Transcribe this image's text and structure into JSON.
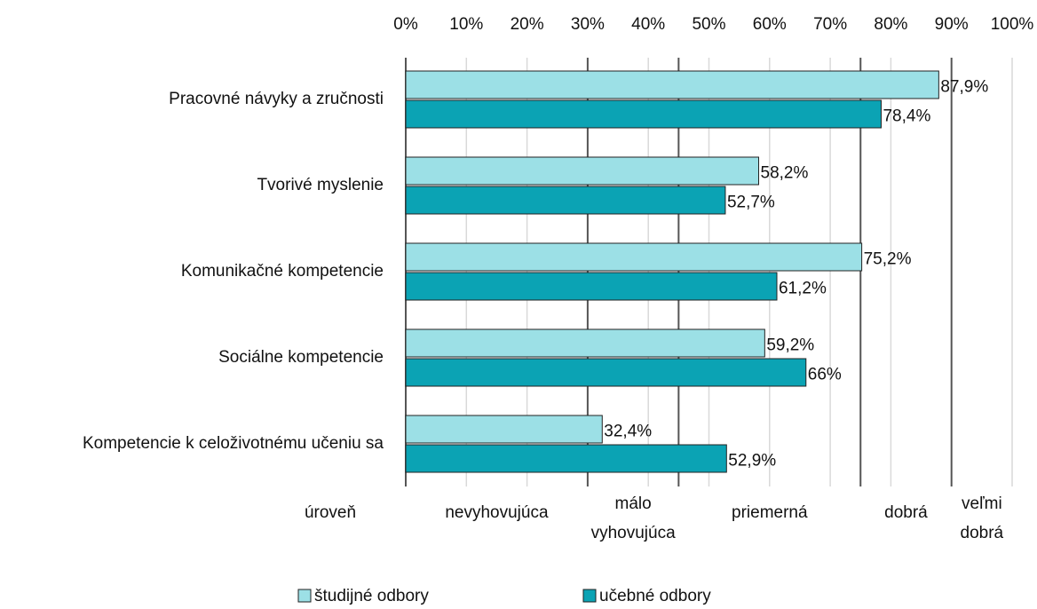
{
  "chart_data": {
    "type": "bar",
    "orientation": "horizontal",
    "categories": [
      "Pracovné návyky a zručnosti",
      "Tvorivé myslenie",
      "Komunikačné kompetencie",
      "Sociálne kompetencie",
      "Kompetencie k celoživotnému učeniu sa"
    ],
    "series": [
      {
        "name": "študijné odbory",
        "color": "#9ce0e6",
        "values": [
          87.9,
          58.2,
          75.2,
          59.2,
          32.4
        ],
        "value_labels": [
          "87,9%",
          "58,2%",
          "75,2%",
          "59,2%",
          "32,4%"
        ]
      },
      {
        "name": "učebné odbory",
        "color": "#0ba3b4",
        "values": [
          78.4,
          52.7,
          61.2,
          66,
          52.9
        ],
        "value_labels": [
          "78,4%",
          "52,7%",
          "61,2%",
          "66%",
          "52,9%"
        ]
      }
    ],
    "xlim": [
      0,
      100
    ],
    "xticks": [
      {
        "value": 0,
        "label": "0%"
      },
      {
        "value": 10,
        "label": "10%"
      },
      {
        "value": 20,
        "label": "20%"
      },
      {
        "value": 30,
        "label": "30%"
      },
      {
        "value": 40,
        "label": "40%"
      },
      {
        "value": 50,
        "label": "50%"
      },
      {
        "value": 60,
        "label": "60%"
      },
      {
        "value": 70,
        "label": "70%"
      },
      {
        "value": 80,
        "label": "80%"
      },
      {
        "value": 90,
        "label": "90%"
      },
      {
        "value": 100,
        "label": "100%"
      }
    ],
    "grid": true,
    "legend": "bottom",
    "levels": {
      "label": "úroveň",
      "bands": [
        {
          "label": [
            "nevyhovujúca"
          ],
          "from": 0,
          "to": 30
        },
        {
          "label": [
            "málo",
            "vyhovujúca"
          ],
          "from": 30,
          "to": 45
        },
        {
          "label": [
            "priemerná"
          ],
          "from": 45,
          "to": 75
        },
        {
          "label": [
            "dobrá"
          ],
          "from": 75,
          "to": 90
        },
        {
          "label": [
            "veľmi",
            "dobrá"
          ],
          "from": 90,
          "to": 100
        }
      ]
    }
  }
}
